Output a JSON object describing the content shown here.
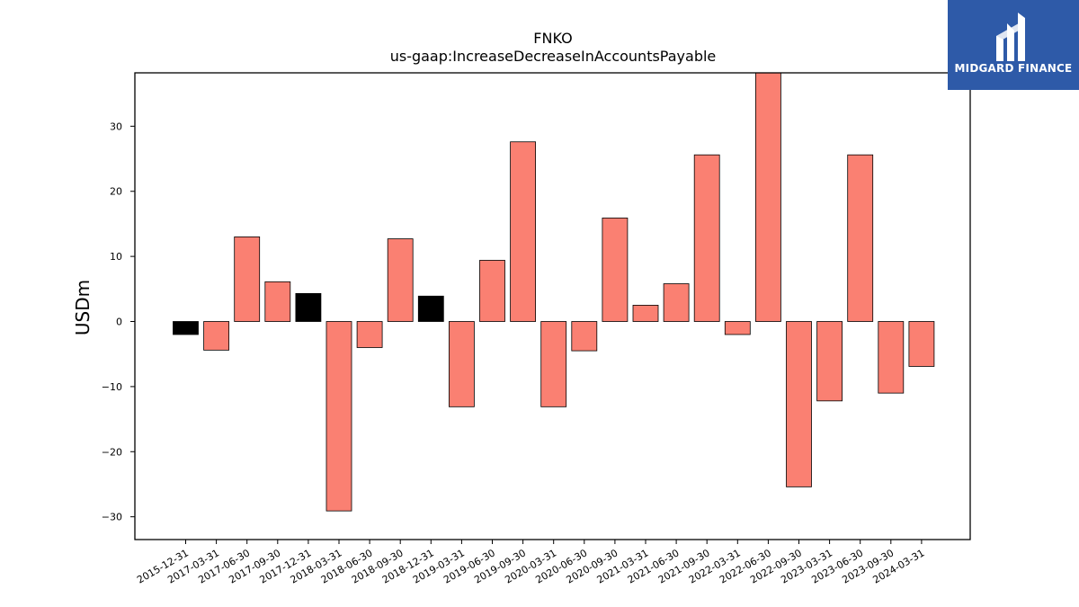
{
  "logo": {
    "text": "MIDGARD FINANCE",
    "background": "#2e5aa8"
  },
  "chart_data": {
    "type": "bar",
    "title": "FNKO",
    "subtitle": "us-gaap:IncreaseDecreaseInAccountsPayable",
    "xlabel": "",
    "ylabel": "USDm",
    "ylim": [
      -33.5,
      38.2
    ],
    "yticks": [
      -30,
      -20,
      -10,
      0,
      10,
      20,
      30
    ],
    "grid": false,
    "categories": [
      "2015-12-31",
      "2017-03-31",
      "2017-06-30",
      "2017-09-30",
      "2017-12-31",
      "2018-03-31",
      "2018-06-30",
      "2018-09-30",
      "2018-12-31",
      "2019-03-31",
      "2019-06-30",
      "2019-09-30",
      "2020-03-31",
      "2020-06-30",
      "2020-09-30",
      "2021-03-31",
      "2021-06-30",
      "2021-09-30",
      "2022-03-31",
      "2022-06-30",
      "2022-09-30",
      "2023-03-31",
      "2023-06-30",
      "2023-09-30",
      "2024-03-31"
    ],
    "values": [
      -2.0,
      -4.4,
      13.0,
      6.1,
      4.3,
      -29.1,
      -4.0,
      12.7,
      3.9,
      -13.1,
      9.4,
      27.6,
      -13.1,
      -4.5,
      15.9,
      2.5,
      5.8,
      25.6,
      -2.0,
      38.2,
      -25.4,
      -12.2,
      25.6,
      -11.0,
      -6.9
    ],
    "colors": [
      "#000000",
      "#fa8072",
      "#fa8072",
      "#fa8072",
      "#000000",
      "#fa8072",
      "#fa8072",
      "#fa8072",
      "#000000",
      "#fa8072",
      "#fa8072",
      "#fa8072",
      "#fa8072",
      "#fa8072",
      "#fa8072",
      "#fa8072",
      "#fa8072",
      "#fa8072",
      "#fa8072",
      "#fa8072",
      "#fa8072",
      "#fa8072",
      "#fa8072",
      "#fa8072",
      "#fa8072"
    ]
  }
}
